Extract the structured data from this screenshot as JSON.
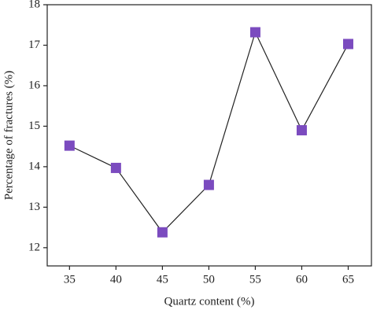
{
  "chart_data": {
    "type": "line",
    "x_label": "Quartz content (%)",
    "y_label": "Percentage of fractures (%)",
    "x": [
      35,
      40,
      45,
      50,
      55,
      60,
      65
    ],
    "series": [
      {
        "color": "#7b4bbf",
        "values": [
          14.52,
          13.97,
          12.38,
          13.55,
          17.32,
          14.9,
          17.03
        ]
      }
    ],
    "xlim": [
      32.6,
      67.5
    ],
    "xticks": [
      35,
      40,
      45,
      50,
      55,
      60,
      65
    ],
    "ylim": [
      11.55,
      18
    ],
    "yticks": [
      12,
      13,
      14,
      15,
      16,
      17,
      18
    ],
    "grid": false
  }
}
